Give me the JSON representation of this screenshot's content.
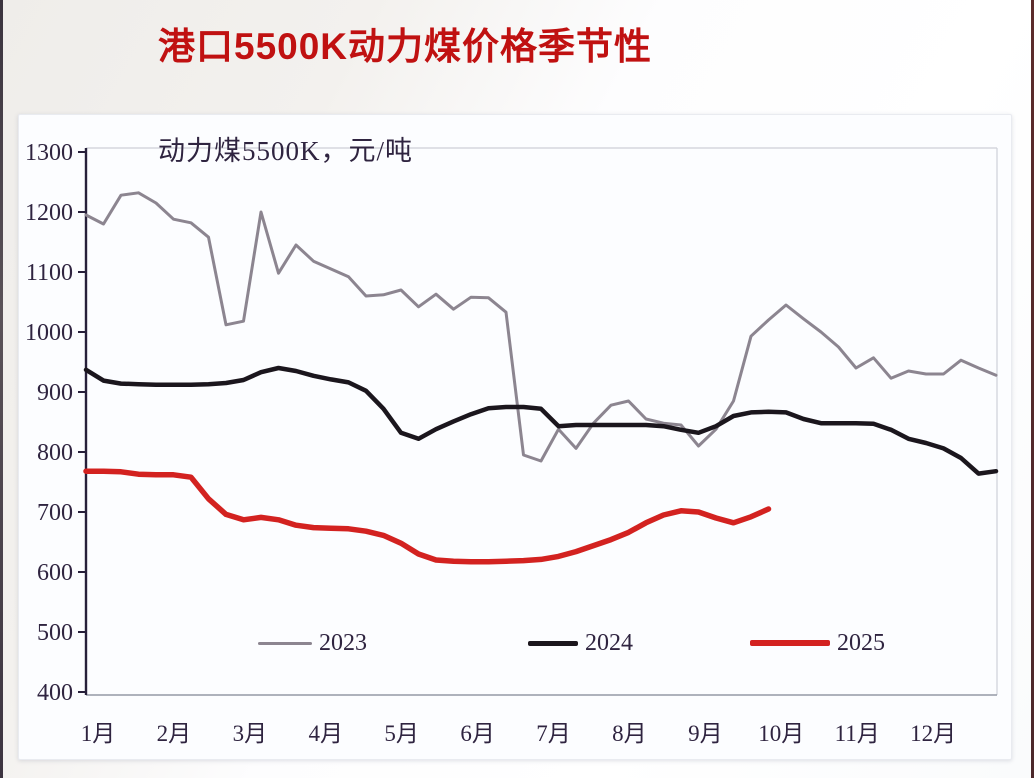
{
  "page": {
    "title": "港口5500K动力煤价格季节性"
  },
  "chart_data": {
    "type": "line",
    "title": "港口5500K动力煤价格季节性",
    "subtitle": "动力煤5500K，元/吨",
    "ylabel": "元/吨",
    "xlabel": "",
    "ylim": [
      400,
      1300
    ],
    "y_ticks": [
      1300,
      1200,
      1100,
      1000,
      900,
      800,
      700,
      600,
      500,
      400
    ],
    "x_labels": [
      "1月",
      "2月",
      "3月",
      "4月",
      "5月",
      "6月",
      "7月",
      "8月",
      "9月",
      "10月",
      "11月",
      "12月"
    ],
    "grid": false,
    "legend_position": "inside-bottom",
    "sampling": "weekly",
    "series": [
      {
        "name": "2023",
        "color": "#8c8590",
        "stroke_width": 3,
        "values": [
          1195,
          1180,
          1228,
          1232,
          1215,
          1188,
          1182,
          1158,
          1012,
          1018,
          1200,
          1098,
          1145,
          1118,
          1105,
          1092,
          1060,
          1062,
          1070,
          1042,
          1063,
          1038,
          1058,
          1057,
          1033,
          795,
          785,
          838,
          806,
          848,
          878,
          885,
          855,
          848,
          845,
          810,
          838,
          885,
          993,
          1020,
          1045,
          1022,
          1000,
          975,
          940,
          957,
          923,
          935,
          930,
          930,
          953,
          940,
          928
        ]
      },
      {
        "name": "2024",
        "color": "#1b161d",
        "stroke_width": 4.5,
        "values": [
          937,
          919,
          914,
          913,
          912,
          912,
          912,
          913,
          915,
          920,
          933,
          940,
          935,
          927,
          921,
          916,
          902,
          872,
          832,
          822,
          838,
          851,
          863,
          873,
          875,
          875,
          872,
          843,
          845,
          845,
          845,
          845,
          845,
          843,
          837,
          832,
          843,
          860,
          866,
          867,
          866,
          855,
          848,
          848,
          848,
          847,
          837,
          822,
          815,
          806,
          790,
          764,
          768
        ]
      },
      {
        "name": "2025",
        "color": "#d32220",
        "stroke_width": 5.5,
        "values": [
          768,
          768,
          767,
          763,
          762,
          762,
          758,
          722,
          696,
          687,
          691,
          687,
          678,
          674,
          673,
          672,
          668,
          661,
          648,
          630,
          620,
          618,
          617,
          617,
          618,
          619,
          621,
          626,
          634,
          644,
          654,
          666,
          682,
          695,
          702,
          700,
          690,
          682,
          692,
          705
        ]
      }
    ]
  },
  "colors": {
    "title_red": "#c01111",
    "axis_text": "#2f2440",
    "axis_line": "#27203a",
    "frame_light": "#cdd0d8",
    "frame_bottom": "#949aa5",
    "card_bg": "#fcfdff"
  }
}
